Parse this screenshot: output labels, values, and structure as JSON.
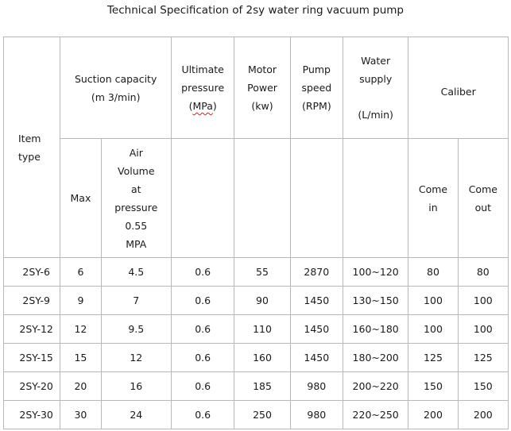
{
  "title": "Technical Specification of 2sy water ring vacuum pump",
  "header": {
    "item_type": [
      "Item",
      "type"
    ],
    "suction_capacity": [
      "Suction capacity",
      "(m 3/min)"
    ],
    "max": "Max",
    "air_volume": [
      "Air",
      "Volume",
      "at",
      "pressure",
      "0.55",
      "MPA"
    ],
    "ultimate_pressure": [
      "Ultimate",
      "pressure"
    ],
    "ultimate_pressure_unit": "MPa",
    "motor_power": [
      "Motor",
      "Power",
      "(kw)"
    ],
    "pump_speed": [
      "Pump",
      "speed",
      "(RPM)"
    ],
    "water_supply": [
      "Water",
      "supply"
    ],
    "water_supply_unit": "(L/min)",
    "caliber": "Caliber",
    "come_in": [
      "Come",
      "in"
    ],
    "come_out": [
      "Come",
      "out"
    ]
  },
  "rows": [
    {
      "item": "2SY-6",
      "max": "6",
      "air": "4.5",
      "ultimate": "0.6",
      "motor": "55",
      "speed": "2870",
      "water": "100~120",
      "in": "80",
      "out": "80"
    },
    {
      "item": "2SY-9",
      "max": "9",
      "air": "7",
      "ultimate": "0.6",
      "motor": "90",
      "speed": "1450",
      "water": "130~150",
      "in": "100",
      "out": "100"
    },
    {
      "item": "2SY-12",
      "max": "12",
      "air": "9.5",
      "ultimate": "0.6",
      "motor": "110",
      "speed": "1450",
      "water": "160~180",
      "in": "100",
      "out": "100"
    },
    {
      "item": "2SY-15",
      "max": "15",
      "air": "12",
      "ultimate": "0.6",
      "motor": "160",
      "speed": "1450",
      "water": "180~200",
      "in": "125",
      "out": "125"
    },
    {
      "item": "2SY-20",
      "max": "20",
      "air": "16",
      "ultimate": "0.6",
      "motor": "185",
      "speed": "980",
      "water": "200~220",
      "in": "150",
      "out": "150"
    },
    {
      "item": "2SY-30",
      "max": "30",
      "air": "24",
      "ultimate": "0.6",
      "motor": "250",
      "speed": "980",
      "water": "220~250",
      "in": "200",
      "out": "200"
    }
  ]
}
